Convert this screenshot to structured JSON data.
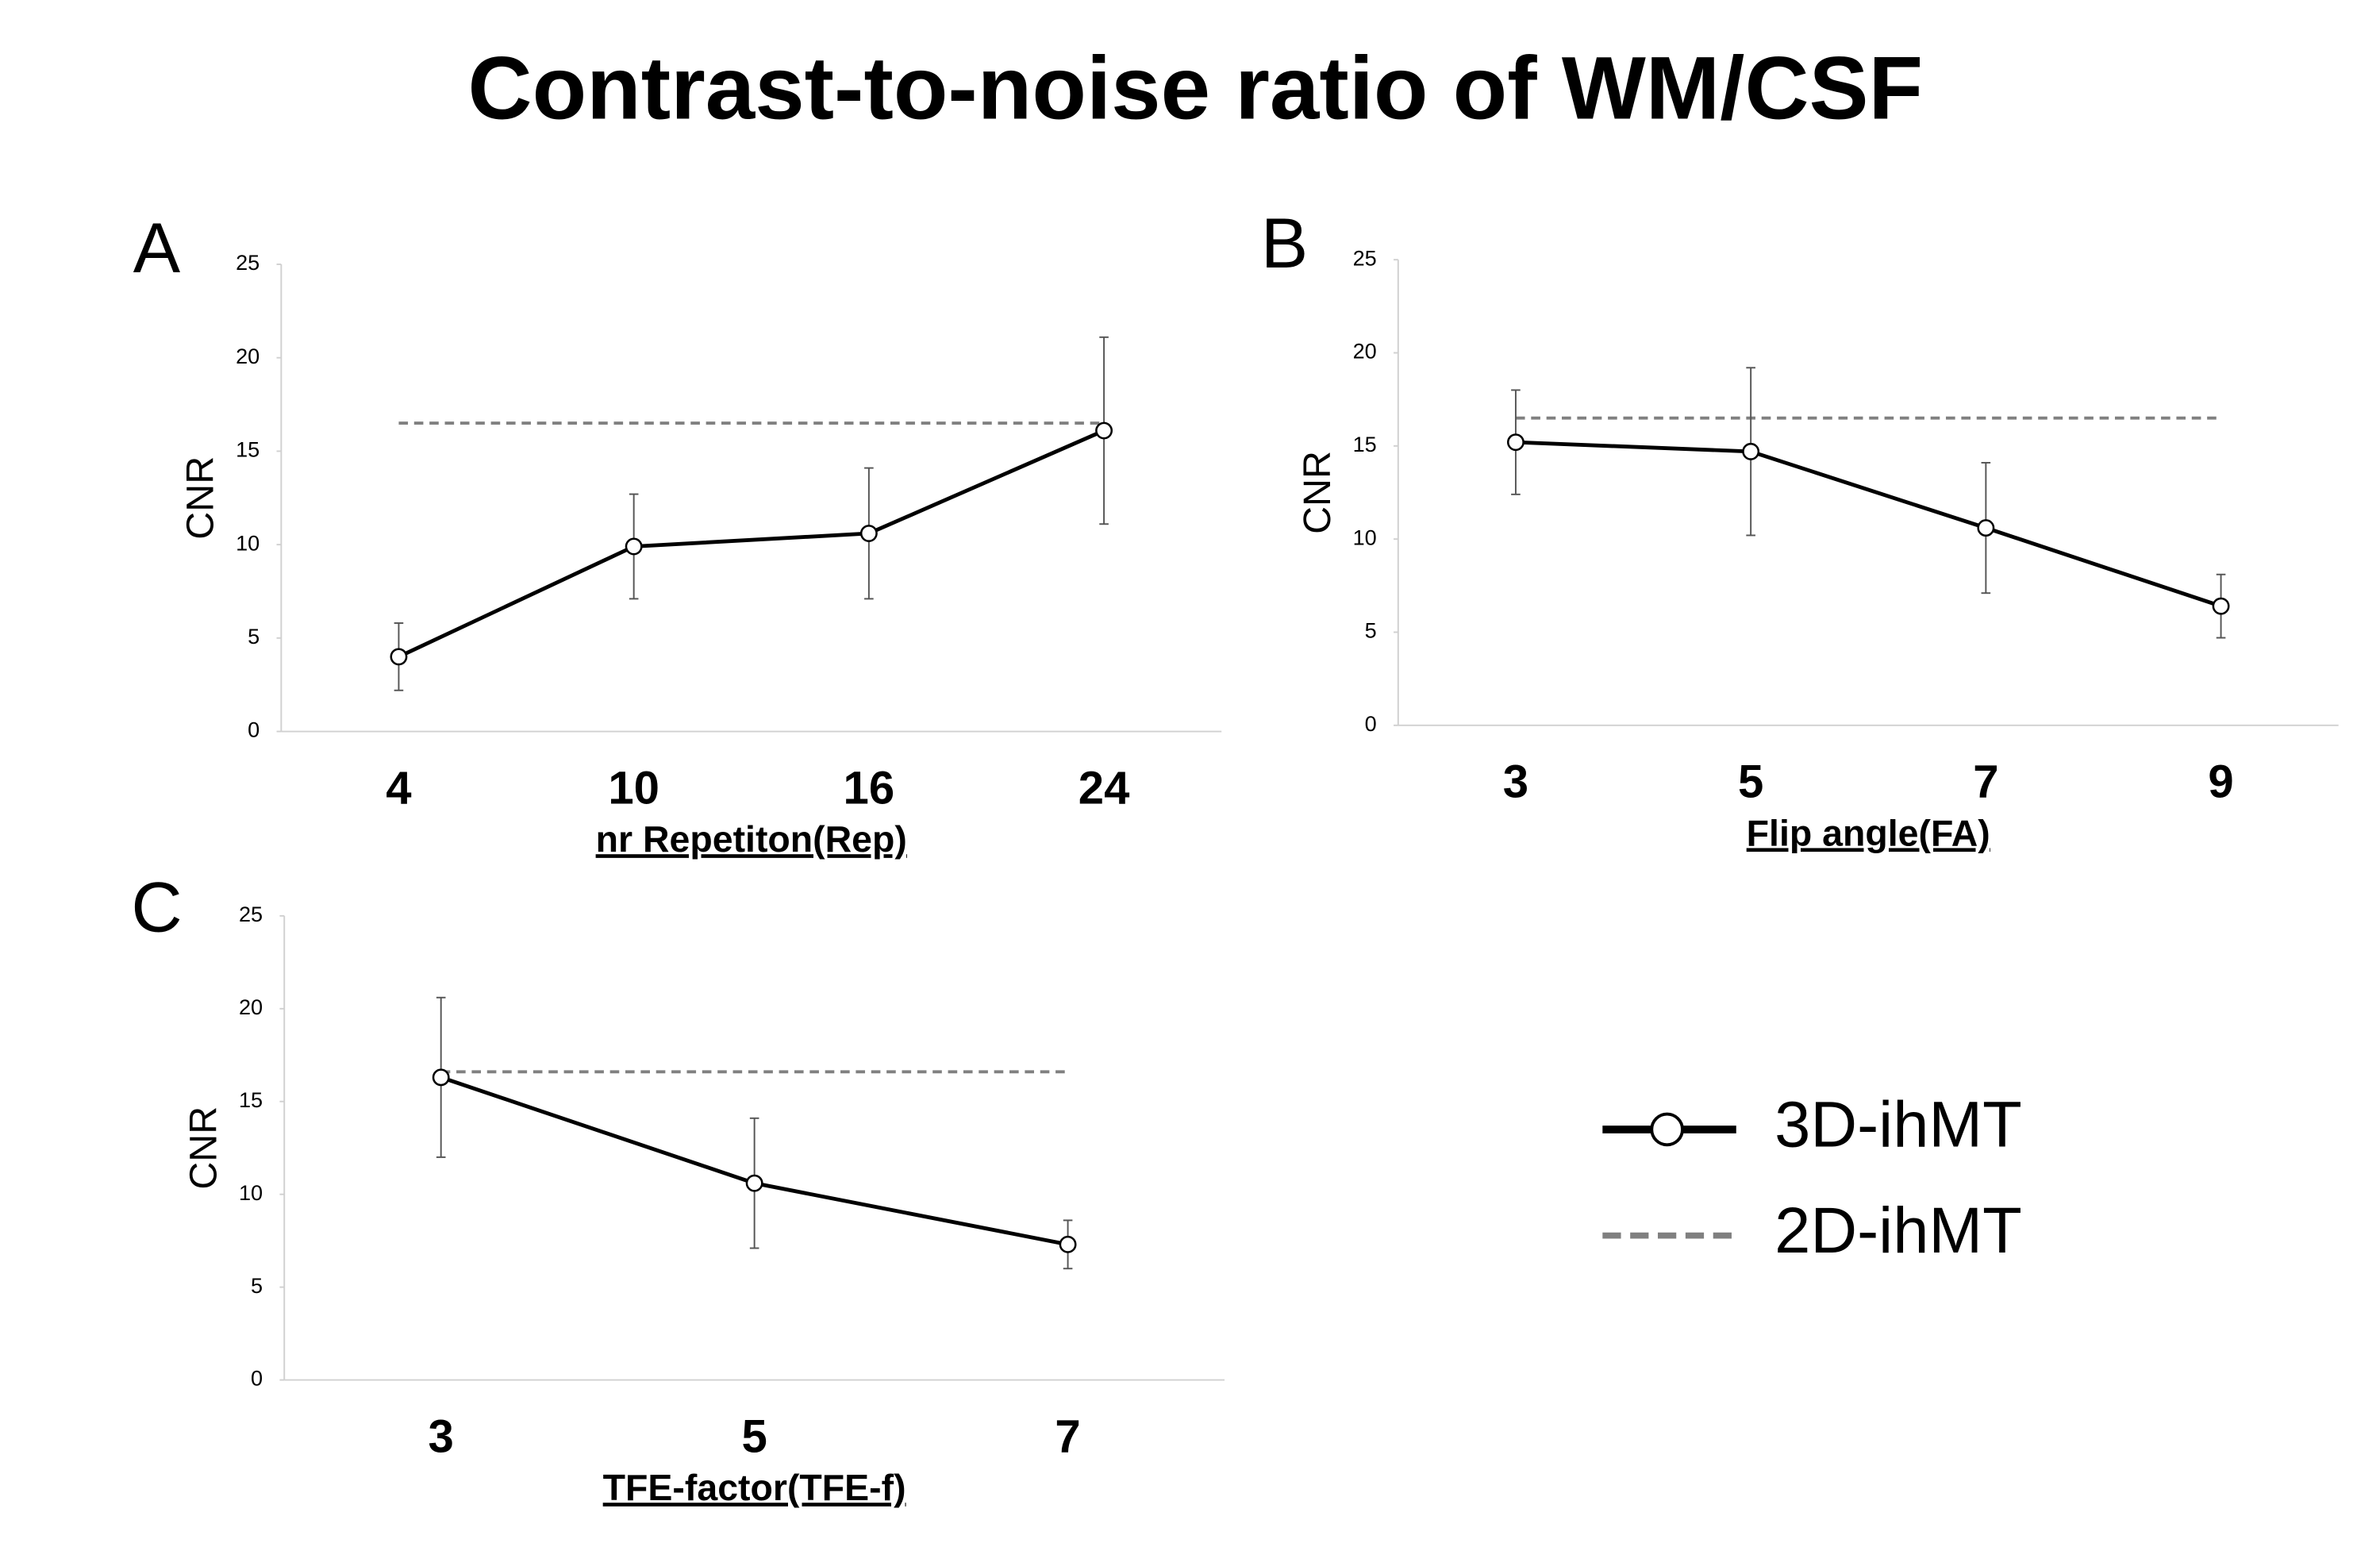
{
  "title": "Contrast-to-noise ratio of WM/CSF",
  "chart_data": [
    {
      "type": "line",
      "panel": "A",
      "x_label": "nr Repetiton(Rep)",
      "y_label": "CNR",
      "categories": [
        "4",
        "10",
        "16",
        "24"
      ],
      "ylim": [
        0,
        25
      ],
      "yticks": [
        0,
        5,
        10,
        15,
        20,
        25
      ],
      "series": [
        {
          "name": "3D-ihMT",
          "color": "#000000",
          "values": [
            4.0,
            9.9,
            10.6,
            16.1
          ],
          "errors": [
            1.8,
            2.8,
            3.5,
            5.0
          ]
        },
        {
          "name": "2D-ihMT",
          "color": "#808080",
          "dashed": true,
          "values": [
            16.5,
            16.5,
            16.5,
            16.5
          ]
        }
      ]
    },
    {
      "type": "line",
      "panel": "B",
      "x_label": "Flip angle(FA)",
      "y_label": "CNR",
      "categories": [
        "3",
        "5",
        "7",
        "9"
      ],
      "ylim": [
        0,
        25
      ],
      "yticks": [
        0,
        5,
        10,
        15,
        20,
        25
      ],
      "series": [
        {
          "name": "3D-ihMT",
          "color": "#000000",
          "values": [
            15.2,
            14.7,
            10.6,
            6.4
          ],
          "errors": [
            2.8,
            4.5,
            3.5,
            1.7
          ]
        },
        {
          "name": "2D-ihMT",
          "color": "#808080",
          "dashed": true,
          "values": [
            16.5,
            16.5,
            16.5,
            16.5
          ]
        }
      ]
    },
    {
      "type": "line",
      "panel": "C",
      "x_label": "TFE-factor(TFE-f)",
      "y_label": "CNR",
      "categories": [
        "3",
        "5",
        "7"
      ],
      "ylim": [
        0,
        25
      ],
      "yticks": [
        0,
        5,
        10,
        15,
        20,
        25
      ],
      "series": [
        {
          "name": "3D-ihMT",
          "color": "#000000",
          "values": [
            16.3,
            10.6,
            7.3
          ],
          "errors": [
            4.3,
            3.5,
            1.3
          ]
        },
        {
          "name": "2D-ihMT",
          "color": "#808080",
          "dashed": true,
          "values": [
            16.6,
            16.6,
            16.6
          ]
        }
      ]
    }
  ]
}
